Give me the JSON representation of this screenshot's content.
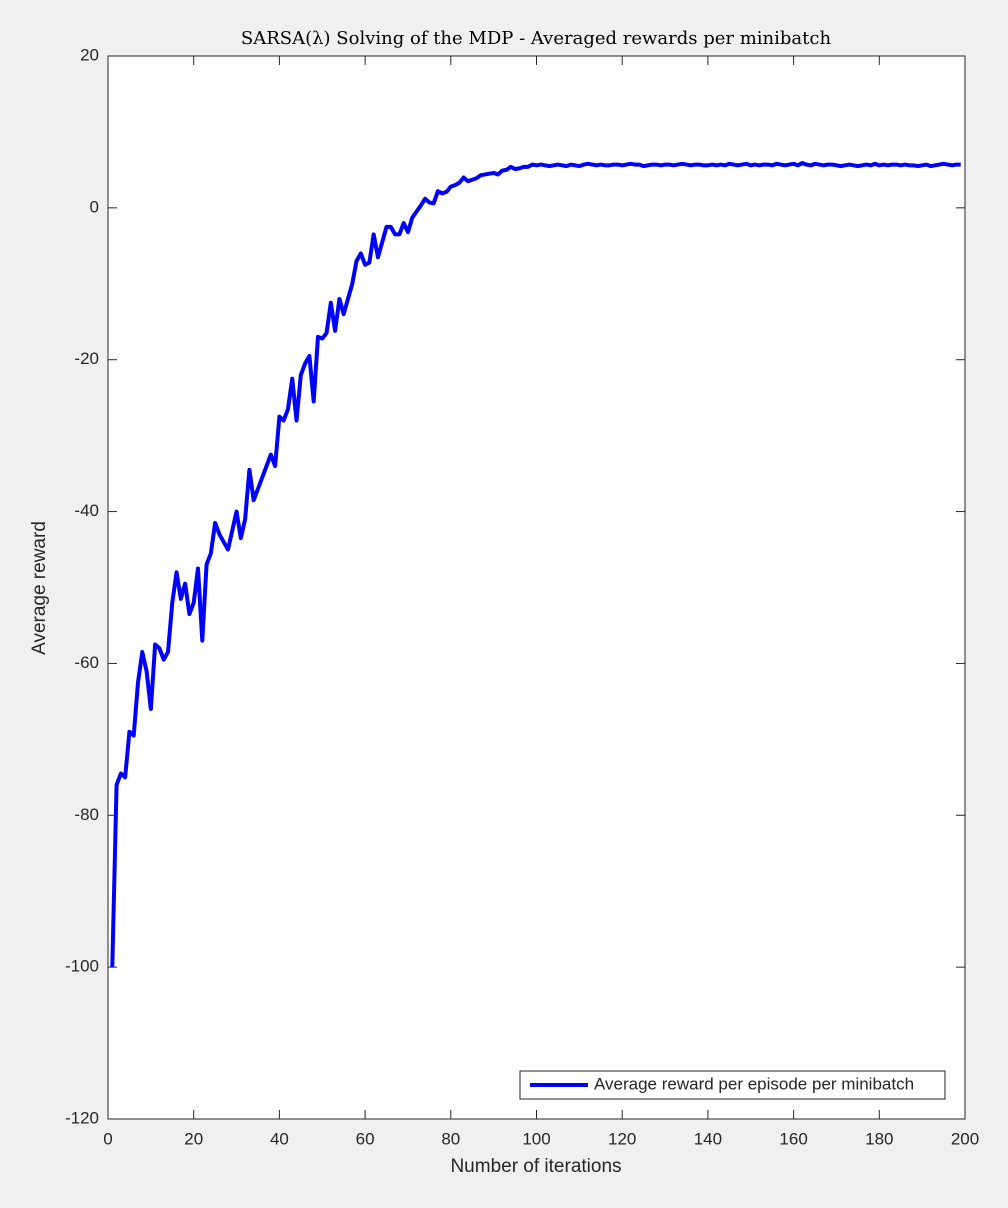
{
  "chart_data": {
    "type": "line",
    "title": "SARSA(λ) Solving of the MDP - Averaged rewards per minibatch",
    "xlabel": "Number of iterations",
    "ylabel": "Average reward",
    "x": [
      1,
      2,
      3,
      4,
      5,
      6,
      7,
      8,
      9,
      10,
      11,
      12,
      13,
      14,
      15,
      16,
      17,
      18,
      19,
      20,
      21,
      22,
      23,
      24,
      25,
      26,
      27,
      28,
      29,
      30,
      31,
      32,
      33,
      34,
      35,
      36,
      37,
      38,
      39,
      40,
      41,
      42,
      43,
      44,
      45,
      46,
      47,
      48,
      49,
      50,
      51,
      52,
      53,
      54,
      55,
      56,
      57,
      58,
      59,
      60,
      61,
      62,
      63,
      64,
      65,
      66,
      67,
      68,
      69,
      70,
      71,
      72,
      73,
      74,
      75,
      76,
      77,
      78,
      79,
      80,
      81,
      82,
      83,
      84,
      85,
      86,
      87,
      88,
      89,
      90,
      91,
      92,
      93,
      94,
      95,
      96,
      97,
      98,
      99,
      100,
      101,
      102,
      103,
      104,
      105,
      106,
      107,
      108,
      109,
      110,
      111,
      112,
      113,
      114,
      115,
      116,
      117,
      118,
      119,
      120,
      121,
      122,
      123,
      124,
      125,
      126,
      127,
      128,
      129,
      130,
      131,
      132,
      133,
      134,
      135,
      136,
      137,
      138,
      139,
      140,
      141,
      142,
      143,
      144,
      145,
      146,
      147,
      148,
      149,
      150,
      151,
      152,
      153,
      154,
      155,
      156,
      157,
      158,
      159,
      160,
      161,
      162,
      163,
      164,
      165,
      166,
      167,
      168,
      169,
      170,
      171,
      172,
      173,
      174,
      175,
      176,
      177,
      178,
      179,
      180,
      181,
      182,
      183,
      184,
      185,
      186,
      187,
      188,
      189,
      190,
      191,
      192,
      193,
      194,
      195,
      196,
      197,
      198,
      199
    ],
    "series": [
      {
        "name": "Average reward per episode per minibatch",
        "color": "#0000ff",
        "values": [
          -100,
          -76,
          -74.5,
          -75,
          -69,
          -69.5,
          -62.5,
          -58.5,
          -61,
          -66,
          -57.5,
          -58,
          -59.5,
          -58.5,
          -52,
          -48,
          -51.5,
          -49.5,
          -53.5,
          -52,
          -47.5,
          -57,
          -47,
          -45.5,
          -41.5,
          -43,
          -44,
          -45,
          -42.5,
          -40,
          -43.5,
          -41,
          -34.5,
          -38.5,
          -37,
          -35.5,
          -34,
          -32.5,
          -34,
          -27.5,
          -28,
          -26.5,
          -22.5,
          -28,
          -22,
          -20.5,
          -19.5,
          -25.5,
          -17,
          -17.2,
          -16.5,
          -12.5,
          -16.2,
          -12,
          -14,
          -12,
          -10,
          -7,
          -6,
          -7.5,
          -7.2,
          -3.5,
          -6.5,
          -4.5,
          -2.5,
          -2.5,
          -3.5,
          -3.5,
          -2,
          -3.2,
          -1.3,
          -0.5,
          0.3,
          1.2,
          0.7,
          0.6,
          2.2,
          1.9,
          2.1,
          2.8,
          3,
          3.3,
          4,
          3.5,
          3.7,
          3.9,
          4.3,
          4.4,
          4.5,
          4.6,
          4.4,
          4.9,
          5.0,
          5.4,
          5.1,
          5.2,
          5.4,
          5.4,
          5.7,
          5.6,
          5.7,
          5.6,
          5.5,
          5.6,
          5.7,
          5.6,
          5.5,
          5.7,
          5.6,
          5.5,
          5.7,
          5.8,
          5.7,
          5.6,
          5.7,
          5.6,
          5.6,
          5.7,
          5.7,
          5.6,
          5.7,
          5.8,
          5.7,
          5.7,
          5.5,
          5.6,
          5.7,
          5.7,
          5.6,
          5.7,
          5.7,
          5.6,
          5.7,
          5.8,
          5.7,
          5.6,
          5.7,
          5.7,
          5.6,
          5.6,
          5.7,
          5.6,
          5.7,
          5.6,
          5.8,
          5.7,
          5.6,
          5.7,
          5.8,
          5.6,
          5.7,
          5.6,
          5.7,
          5.7,
          5.6,
          5.8,
          5.7,
          5.6,
          5.7,
          5.8,
          5.6,
          5.9,
          5.7,
          5.6,
          5.8,
          5.7,
          5.6,
          5.7,
          5.7,
          5.6,
          5.5,
          5.6,
          5.7,
          5.6,
          5.5,
          5.6,
          5.7,
          5.6,
          5.8,
          5.6,
          5.7,
          5.6,
          5.7,
          5.7,
          5.6,
          5.7,
          5.6,
          5.6,
          5.5,
          5.6,
          5.7,
          5.5,
          5.6,
          5.7,
          5.8,
          5.7,
          5.6,
          5.7,
          5.7
        ]
      }
    ],
    "xlim": [
      0,
      200
    ],
    "xticks": [
      0,
      20,
      40,
      60,
      80,
      100,
      120,
      140,
      160,
      180,
      200
    ],
    "ylim": [
      -120,
      20
    ],
    "yticks": [
      -120,
      -100,
      -80,
      -60,
      -40,
      -20,
      0,
      20
    ],
    "grid": false,
    "legend": "southeast"
  }
}
